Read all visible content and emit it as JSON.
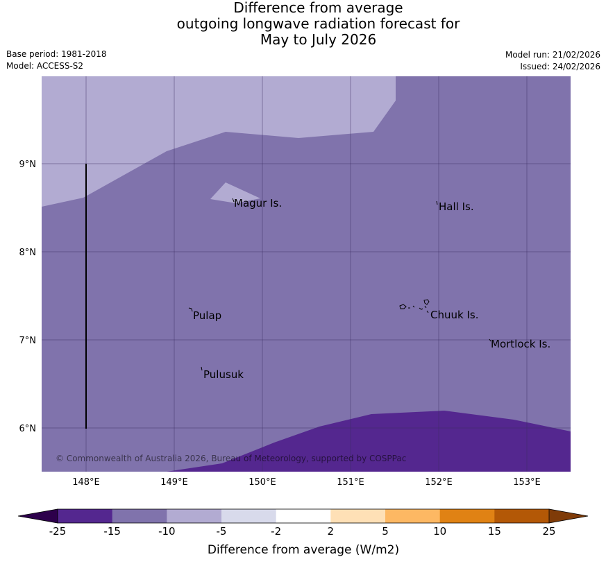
{
  "title": {
    "line1": "Difference from average",
    "line2": "outgoing longwave radiation forecast for",
    "line3": "May to July 2026"
  },
  "meta": {
    "base_period": "Base period: 1981-2018",
    "model": "Model: ACCESS-S2",
    "model_run": "Model run: 21/02/2026",
    "issued": "Issued: 24/02/2026"
  },
  "map": {
    "lat_labels": [
      "9°N",
      "8°N",
      "7°N",
      "6°N"
    ],
    "lon_labels": [
      "148°E",
      "149°E",
      "150°E",
      "151°E",
      "152°E",
      "153°E"
    ],
    "places": [
      "Magur Is.",
      "Hall Is.",
      "Pulap",
      "Chuuk Is.",
      "Mortlock Is.",
      "Pulusuk"
    ],
    "copyright": "© Commonwealth of Australia 2026, Bureau of Meteorology, supported by COSPPac"
  },
  "colorbar": {
    "ticks": [
      "-25",
      "-15",
      "-10",
      "-5",
      "-2",
      "2",
      "5",
      "10",
      "15",
      "25"
    ],
    "colors": [
      "#54278f",
      "#8073ac",
      "#b2abd2",
      "#d8daeb",
      "#ffffff",
      "#fee0b6",
      "#fdb863",
      "#e08214",
      "#b35806"
    ],
    "under_color": "#2d004b",
    "over_color": "#7f3b08",
    "label": "Difference from average (W/m2)"
  }
}
